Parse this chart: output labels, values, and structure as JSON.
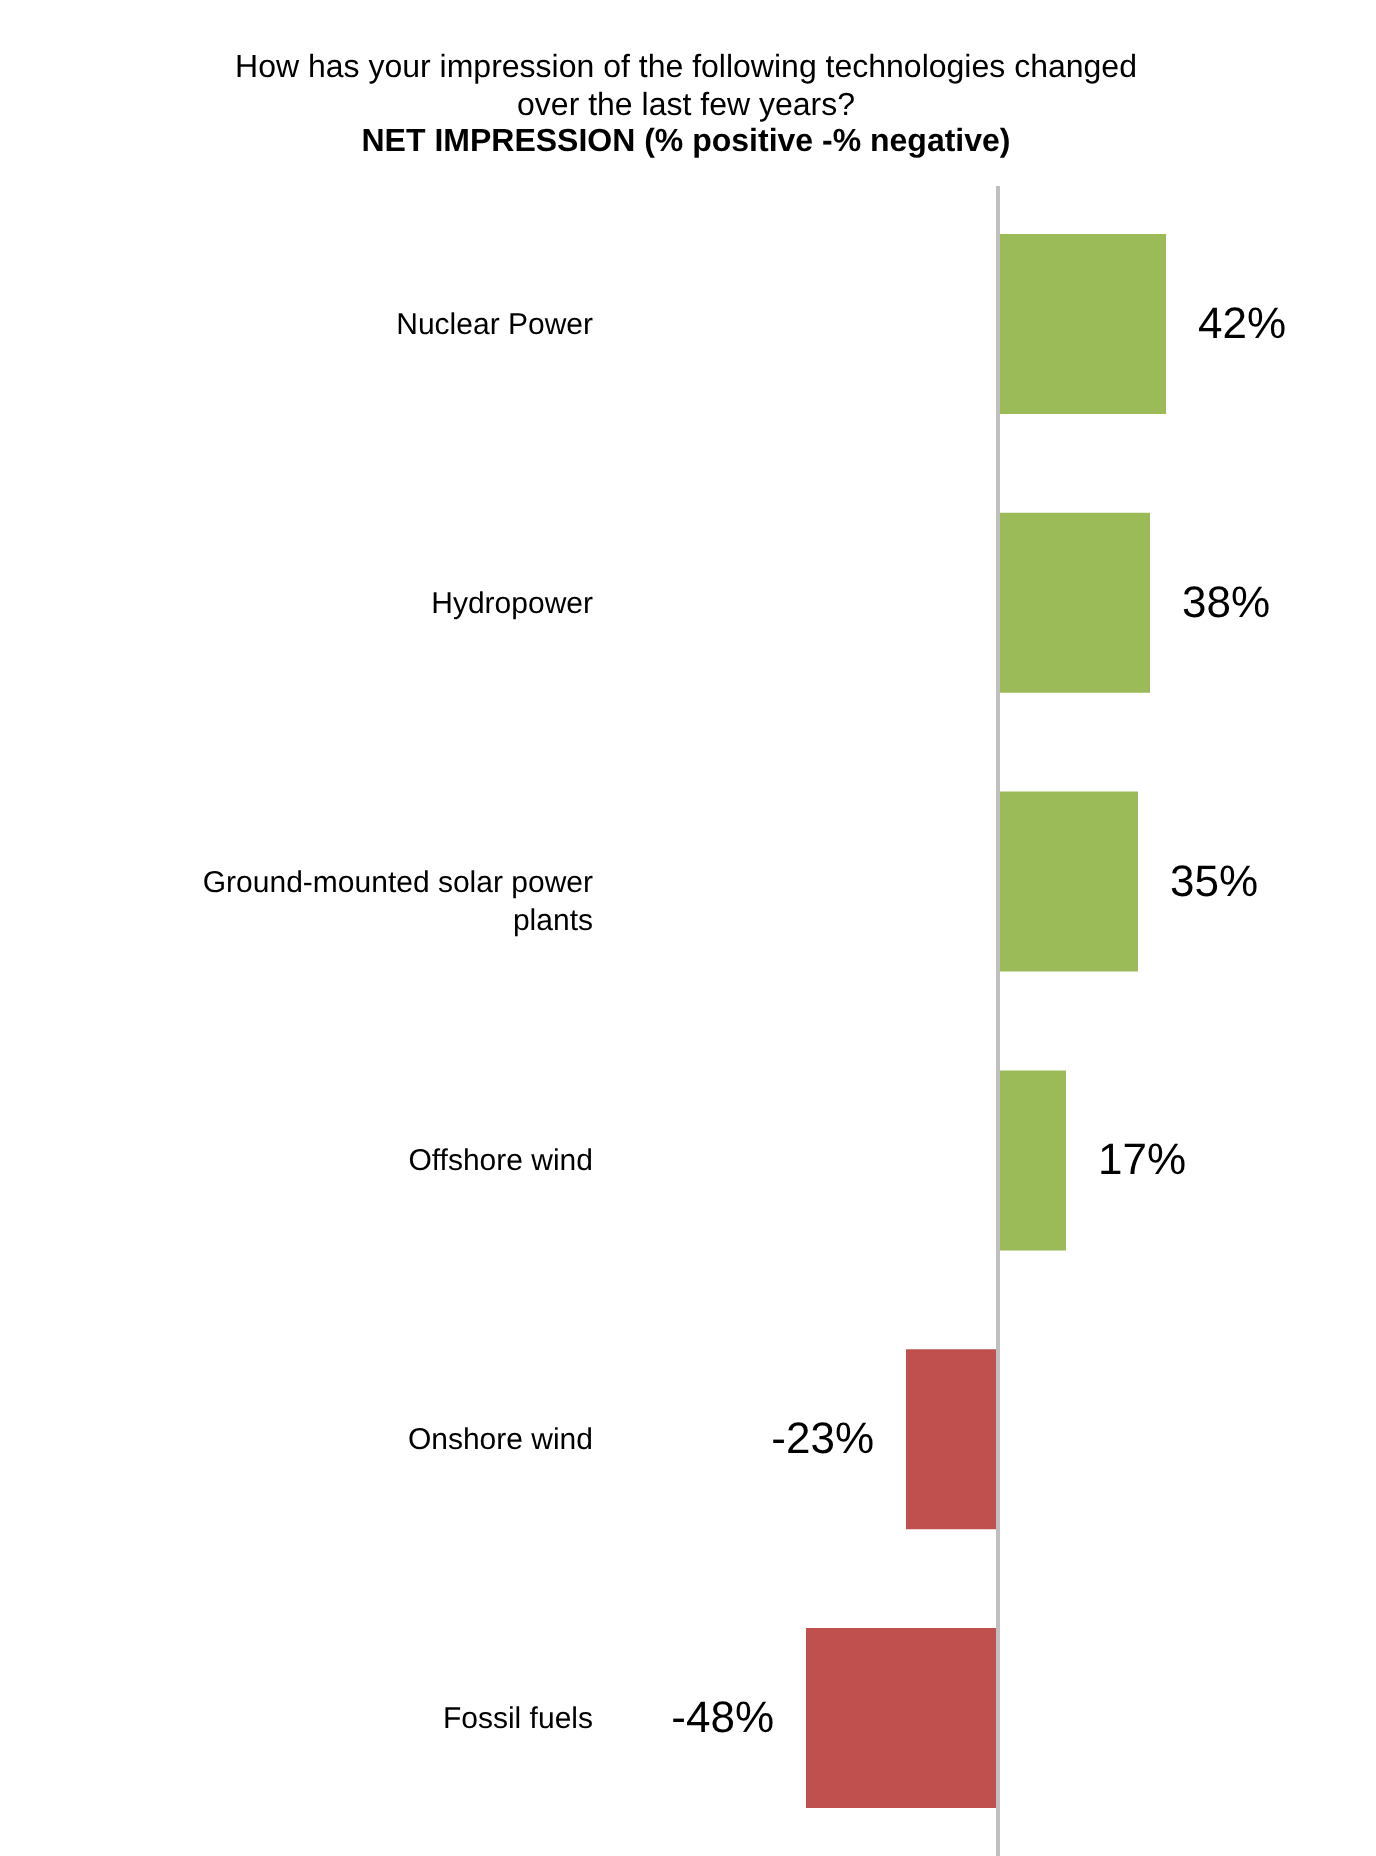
{
  "chart_data": {
    "type": "bar",
    "orientation": "horizontal",
    "title": "How has your impression of the following technologies changed over the last  few years?",
    "subtitle": "NET IMPRESSION (% positive -% negative)",
    "categories": [
      "Nuclear Power",
      "Hydropower",
      "Ground-mounted solar power plants",
      "Offshore wind",
      "Onshore wind",
      "Fossil fuels"
    ],
    "values": [
      42,
      38,
      35,
      17,
      -23,
      -48
    ],
    "value_labels": [
      "42%",
      "38%",
      "35%",
      "17%",
      "-23%",
      "-48%"
    ],
    "colors": [
      "#9bbb59",
      "#9bbb59",
      "#9bbb59",
      "#9bbb59",
      "#c0504d",
      "#c0504d"
    ],
    "tick_labels": "y"
  }
}
